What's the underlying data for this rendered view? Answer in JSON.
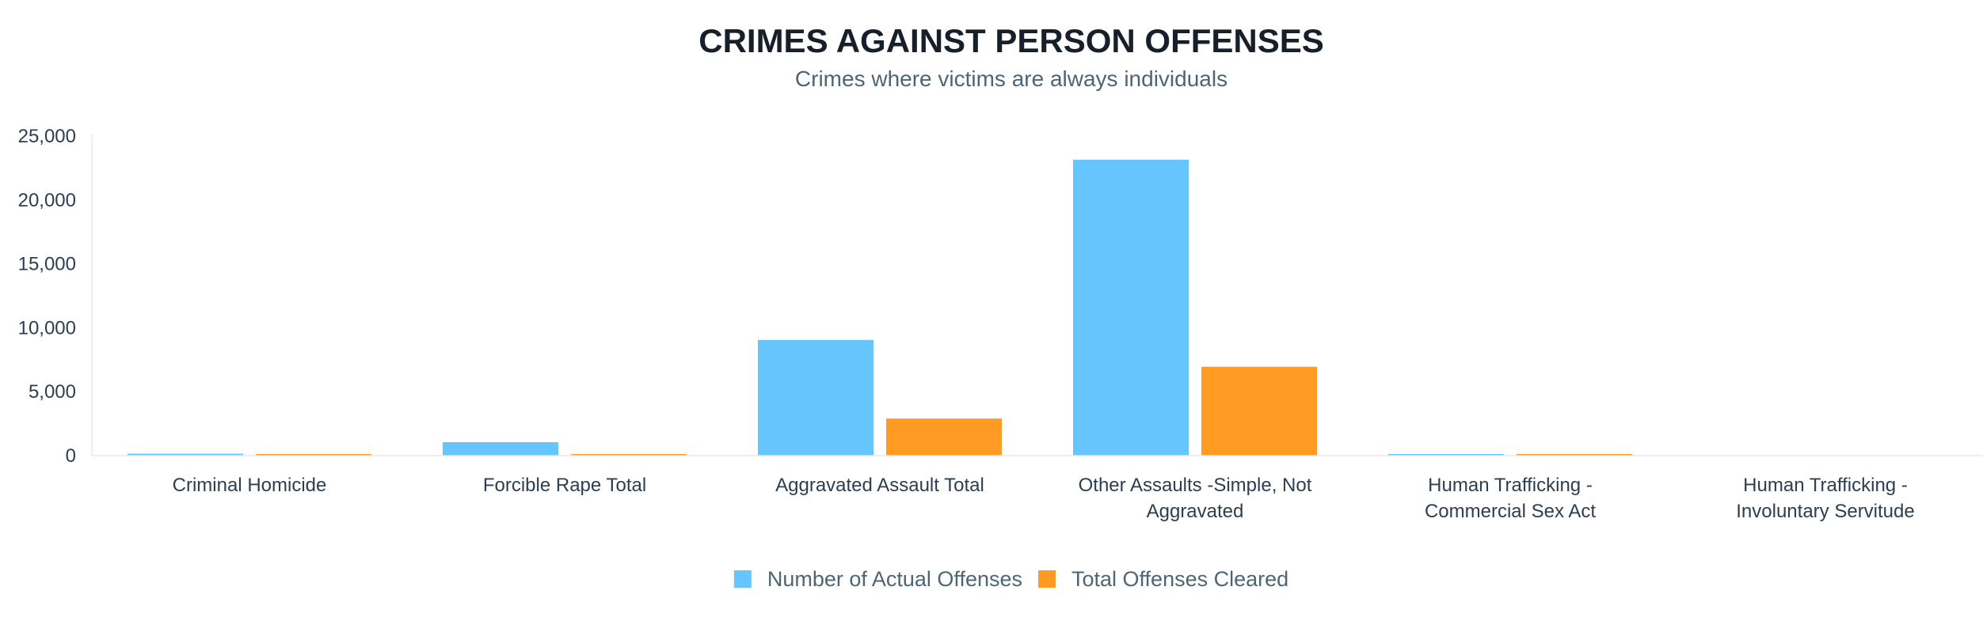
{
  "chart_data": {
    "type": "bar",
    "title": "CRIMES AGAINST PERSON OFFENSES",
    "subtitle": "Crimes where victims are always individuals",
    "xlabel": "",
    "ylabel": "",
    "ylim": [
      0,
      25000
    ],
    "yticks": [
      0,
      5000,
      10000,
      15000,
      20000,
      25000
    ],
    "ytick_labels": [
      "0",
      "5,000",
      "10,000",
      "15,000",
      "20,000",
      "25,000"
    ],
    "grid": false,
    "legend_position": "bottom-center",
    "categories": [
      [
        "Criminal Homicide"
      ],
      [
        "Forcible Rape Total"
      ],
      [
        "Aggravated Assault Total"
      ],
      [
        "Other Assaults -Simple, Not",
        "Aggravated"
      ],
      [
        "Human Trafficking -",
        "Commercial Sex Act"
      ],
      [
        "Human Trafficking -",
        "Involuntary Servitude"
      ]
    ],
    "series": [
      {
        "name": "Number of Actual Offenses",
        "color": "#66c5fd",
        "values": [
          150,
          1050,
          9050,
          23150,
          20,
          0
        ]
      },
      {
        "name": "Total Offenses Cleared",
        "color": "#ff9a22",
        "values": [
          110,
          100,
          2900,
          6950,
          10,
          0
        ]
      }
    ]
  }
}
